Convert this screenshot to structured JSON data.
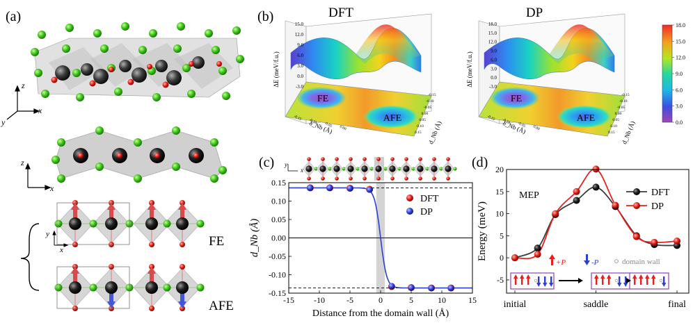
{
  "panels": {
    "a": {
      "label": "(a)",
      "axes_top": {
        "z": "z",
        "x": "x",
        "y": "y"
      },
      "axes_mid": {
        "z": "z",
        "x": "x"
      },
      "axes_small": {
        "y": "y",
        "x": "x"
      },
      "states": [
        "FE",
        "AFE"
      ]
    },
    "b": {
      "label": "(b)",
      "titles": [
        "DFT",
        "DP"
      ],
      "zlabel": "ΔE (meV/f.u.)",
      "xlabel": "δ_Nb (Å)",
      "ylabel": "d_Nb (Å)",
      "surface_labels": [
        "FE",
        "AFE"
      ],
      "ticks_left": [
        "15.0",
        "12.0",
        "9.0",
        "6.0",
        "3.0",
        "0.0",
        "-3.0"
      ],
      "ticks_right": [
        "18.0",
        "15.0",
        "12.0",
        "9.0",
        "6.0",
        "3.0",
        "0.0",
        "-3.0"
      ],
      "xticks": [
        "-0.15",
        "-0.10",
        "-0.05",
        "0.00"
      ],
      "yticks": [
        "0.15",
        "0.10",
        "0.05",
        "0.00",
        "-0.05",
        "-0.10",
        "-0.15"
      ],
      "colorbar_ticks": [
        "18.0",
        "15.0",
        "12.0",
        "9.0",
        "6.0",
        "3.0",
        "0.0"
      ]
    },
    "c": {
      "label": "(c)",
      "inset_axes": {
        "y": "y",
        "x": "x"
      }
    },
    "d": {
      "label": "(d)",
      "annotation": "MEP",
      "legend_arrows": {
        "up": "+P",
        "down": "-P",
        "wall": "domain wall"
      }
    }
  },
  "chart_data": [
    {
      "type": "scatter",
      "panel": "c",
      "xlabel": "Distance from the domain wall (Å)",
      "ylabel": "d_Nb (Å)",
      "xlim": [
        -15,
        15
      ],
      "ylim": [
        -0.15,
        0.15
      ],
      "xticks": [
        -15,
        -10,
        -5,
        0,
        5,
        10,
        15
      ],
      "yticks": [
        -0.15,
        -0.1,
        -0.05,
        0.0,
        0.05,
        0.1,
        0.15
      ],
      "reference_lines": [
        0.136,
        -0.136
      ],
      "legend": "top-right",
      "series": [
        {
          "name": "DFT",
          "color": "#e8201c",
          "x": [
            -11.5,
            -8.3,
            -5.0,
            -1.8,
            1.8,
            5.0,
            8.3,
            11.5
          ],
          "y": [
            0.136,
            0.136,
            0.135,
            0.132,
            -0.132,
            -0.135,
            -0.136,
            -0.136
          ]
        },
        {
          "name": "DP",
          "color": "#2a3fd6",
          "x": [
            -11.5,
            -8.3,
            -5.0,
            -1.8,
            1.8,
            5.0,
            8.3,
            11.5
          ],
          "y": [
            0.136,
            0.136,
            0.135,
            0.131,
            -0.131,
            -0.135,
            -0.136,
            -0.136
          ]
        }
      ]
    },
    {
      "type": "line",
      "panel": "d",
      "ylabel": "Energy (meV)",
      "categories": [
        "initial",
        "saddle",
        "final"
      ],
      "ylim": [
        -8,
        20
      ],
      "yticks": [
        -5,
        0,
        5,
        10,
        15,
        20
      ],
      "legend": "top-right",
      "series": [
        {
          "name": "DFT",
          "color": "#3a3a3a",
          "x": [
            0,
            0.14,
            0.25,
            0.38,
            0.5,
            0.62,
            0.75,
            0.86,
            1.0
          ],
          "y": [
            0.0,
            2.2,
            9.8,
            13.0,
            16.0,
            11.6,
            5.0,
            3.0,
            2.8
          ]
        },
        {
          "name": "DP",
          "color": "#e8201c",
          "x": [
            0,
            0.14,
            0.25,
            0.38,
            0.5,
            0.62,
            0.75,
            0.86,
            1.0
          ],
          "y": [
            0.0,
            0.8,
            10.0,
            15.0,
            20.1,
            11.9,
            4.8,
            3.5,
            3.8
          ]
        }
      ]
    }
  ]
}
